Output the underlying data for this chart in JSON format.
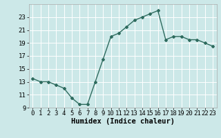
{
  "x": [
    0,
    1,
    2,
    3,
    4,
    5,
    6,
    7,
    8,
    9,
    10,
    11,
    12,
    13,
    14,
    15,
    16,
    17,
    18,
    19,
    20,
    21,
    22,
    23
  ],
  "y": [
    13.5,
    13.0,
    13.0,
    12.5,
    12.0,
    10.5,
    9.5,
    9.5,
    13.0,
    16.5,
    20.0,
    20.5,
    21.5,
    22.5,
    23.0,
    23.5,
    24.0,
    19.5,
    20.0,
    20.0,
    19.5,
    19.5,
    19.0,
    18.5
  ],
  "line_color": "#2e6b5e",
  "bg_color": "#cce8e8",
  "grid_color": "#ffffff",
  "xlabel": "Humidex (Indice chaleur)",
  "ylim": [
    9,
    25
  ],
  "xlim": [
    -0.5,
    23.5
  ],
  "yticks": [
    9,
    11,
    13,
    15,
    17,
    19,
    21,
    23
  ],
  "xticks": [
    0,
    1,
    2,
    3,
    4,
    5,
    6,
    7,
    8,
    9,
    10,
    11,
    12,
    13,
    14,
    15,
    16,
    17,
    18,
    19,
    20,
    21,
    22,
    23
  ],
  "marker": "D",
  "markersize": 2.0,
  "linewidth": 1.0,
  "xlabel_fontsize": 7.5,
  "tick_fontsize": 6.5
}
